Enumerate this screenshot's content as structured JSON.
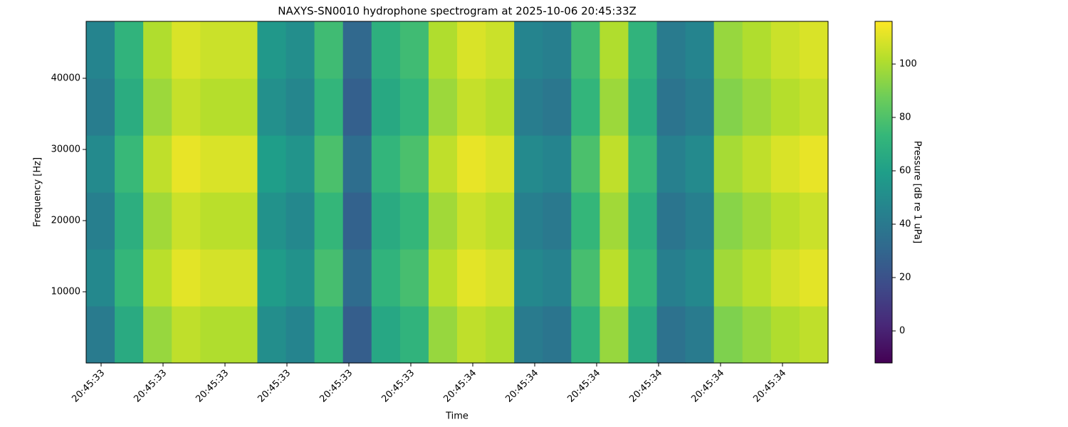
{
  "chart_data": {
    "type": "heatmap",
    "title": "NAXYS-SN0010 hydrophone spectrogram at 2025-10-06 20:45:33Z",
    "xlabel": "Time",
    "ylabel": "Frequency [Hz]",
    "colorbar_label": "Pressure [dB re 1 uPa]",
    "colormap": "viridis",
    "xticks": [
      "20:45:33",
      "20:45:33",
      "20:45:33",
      "20:45:33",
      "20:45:33",
      "20:45:33",
      "20:45:34",
      "20:45:34",
      "20:45:34",
      "20:45:34",
      "20:45:34",
      "20:45:34"
    ],
    "ylim": [
      0,
      48000
    ],
    "yticks": [
      10000,
      20000,
      30000,
      40000
    ],
    "clim": [
      -12,
      116
    ],
    "cticks": [
      0,
      20,
      40,
      60,
      80,
      100
    ],
    "z": [
      [
        41,
        66,
        96,
        104,
        101,
        101,
        51,
        46,
        71,
        26,
        64,
        71,
        96,
        104,
        101,
        41,
        38,
        71,
        96,
        66,
        36,
        41,
        91,
        96,
        101,
        104
      ],
      [
        48,
        73,
        103,
        111,
        108,
        108,
        58,
        53,
        78,
        33,
        71,
        78,
        103,
        111,
        108,
        48,
        45,
        78,
        103,
        73,
        43,
        48,
        98,
        103,
        108,
        111
      ],
      [
        43,
        68,
        98,
        106,
        103,
        103,
        53,
        48,
        73,
        28,
        66,
        73,
        98,
        106,
        103,
        43,
        40,
        73,
        98,
        68,
        38,
        43,
        93,
        98,
        103,
        106
      ],
      [
        49,
        74,
        104,
        112,
        109,
        109,
        59,
        54,
        79,
        34,
        72,
        79,
        104,
        112,
        109,
        49,
        46,
        79,
        104,
        74,
        44,
        49,
        99,
        104,
        109,
        112
      ],
      [
        42,
        67,
        97,
        105,
        102,
        102,
        52,
        47,
        72,
        27,
        65,
        72,
        97,
        105,
        102,
        42,
        39,
        72,
        97,
        67,
        37,
        42,
        92,
        97,
        102,
        105
      ],
      [
        46,
        71,
        101,
        109,
        106,
        106,
        56,
        51,
        76,
        31,
        69,
        76,
        101,
        109,
        106,
        46,
        43,
        76,
        101,
        71,
        41,
        46,
        96,
        101,
        106,
        109
      ]
    ]
  }
}
